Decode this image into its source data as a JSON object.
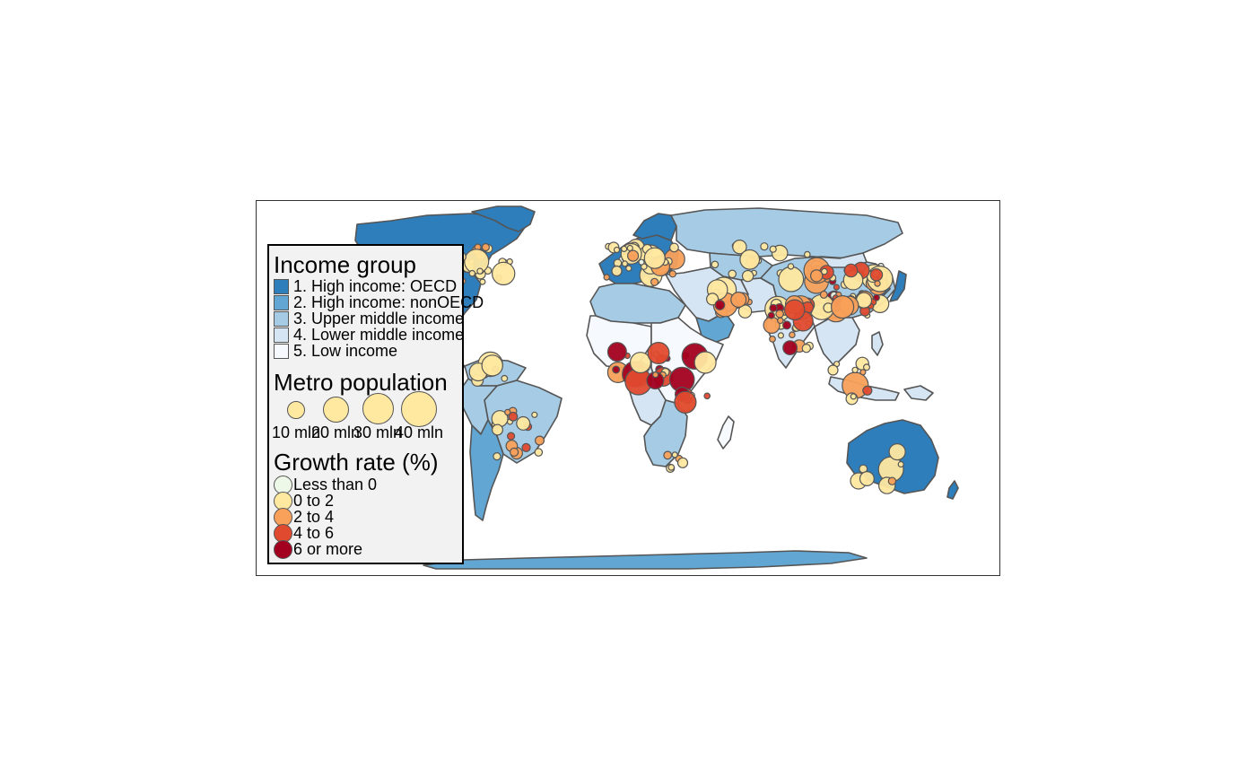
{
  "map": {
    "income_colors": {
      "high_oecd": "#2e7ebc",
      "high_nonoecd": "#62a6d3",
      "upper_middle": "#a6cbe4",
      "lower_middle": "#d6e5f3",
      "low": "#f6f9fd"
    },
    "border_color": "#555555",
    "growth_colors": {
      "less_than_0": "#edf8e9",
      "0_to_2": "#ffe8a0",
      "2_to_4": "#f9a05a",
      "4_to_6": "#e04a2e",
      "6_or_more": "#a3001f"
    }
  },
  "legend": {
    "income": {
      "title": "Income group",
      "items": [
        {
          "label": "1. High income: OECD",
          "color": "#2e7ebc"
        },
        {
          "label": "2. High income: nonOECD",
          "color": "#62a6d3"
        },
        {
          "label": "3. Upper middle income",
          "color": "#a6cbe4"
        },
        {
          "label": "4. Lower middle income",
          "color": "#d6e5f3"
        },
        {
          "label": "5. Low income",
          "color": "#f6f9fd"
        }
      ]
    },
    "population": {
      "title": "Metro population",
      "items": [
        {
          "label": "10 mln",
          "value": 10
        },
        {
          "label": "20 mln",
          "value": 20
        },
        {
          "label": "30 mln",
          "value": 30
        },
        {
          "label": "40 mln",
          "value": 40
        }
      ],
      "color": "#ffe8a0"
    },
    "growth": {
      "title": "Growth rate (%)",
      "items": [
        {
          "label": "Less than 0",
          "color": "#edf8e9"
        },
        {
          "label": "0 to 2",
          "color": "#ffe8a0"
        },
        {
          "label": "2 to 4",
          "color": "#f9a05a"
        },
        {
          "label": "4 to 6",
          "color": "#e04a2e"
        },
        {
          "label": "6 or more",
          "color": "#a3001f"
        }
      ]
    }
  }
}
